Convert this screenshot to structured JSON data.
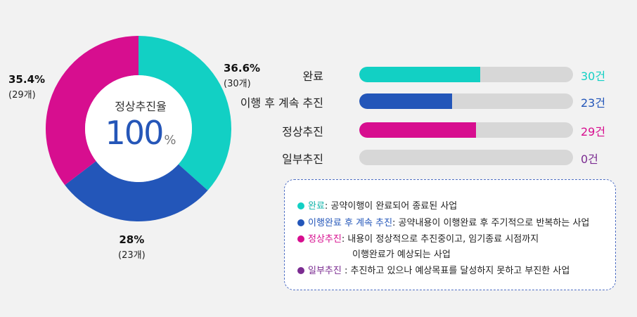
{
  "chart_data": [
    {
      "type": "pie",
      "center": {
        "title": "정상추진율",
        "value": "100",
        "unit": "%"
      },
      "slices": [
        {
          "pct_label": "36.6%",
          "count_label": "(30개)",
          "value": 36.6,
          "color": "#12d0c4"
        },
        {
          "pct_label": "28%",
          "count_label": "(23개)",
          "value": 28,
          "color": "#2356b9"
        },
        {
          "pct_label": "35.4%",
          "count_label": "(29개)",
          "value": 35.4,
          "color": "#d70e8f"
        }
      ]
    },
    {
      "type": "bar",
      "categories": [
        "완료",
        "이행 후 계속 추진",
        "정상추진",
        "일부추진"
      ],
      "values": [
        30,
        23,
        29,
        0
      ],
      "value_labels": [
        "30건",
        "23건",
        "29건",
        "0건"
      ],
      "colors": [
        "#12d0c4",
        "#2356b9",
        "#d70e8f",
        "#7b2c91"
      ],
      "xlim": [
        0,
        53
      ]
    }
  ],
  "legend": [
    {
      "term": "완료",
      "desc": ": 공약이행이 완료되어 종료된 사업",
      "color": "#12d0c4",
      "term_color": "#0fb3a9"
    },
    {
      "term": "이행완료 후 계속 추진",
      "desc": ": 공약내용이 이행완료 후 주기적으로 반복하는 사업",
      "color": "#2356b9",
      "term_color": "#2356b9"
    },
    {
      "term": "정상추진",
      "desc": ": 내용이 정상적으로 추진중이고, 임기종료 시점까지",
      "desc2": "이행완료가 예상되는 사업",
      "color": "#d70e8f",
      "term_color": "#d70e8f"
    },
    {
      "term": "일부추진",
      "desc": " : 추진하고 있으나 예상목표를 달성하지 못하고 부진한 사업",
      "color": "#7b2c91",
      "term_color": "#7b2c91"
    }
  ]
}
